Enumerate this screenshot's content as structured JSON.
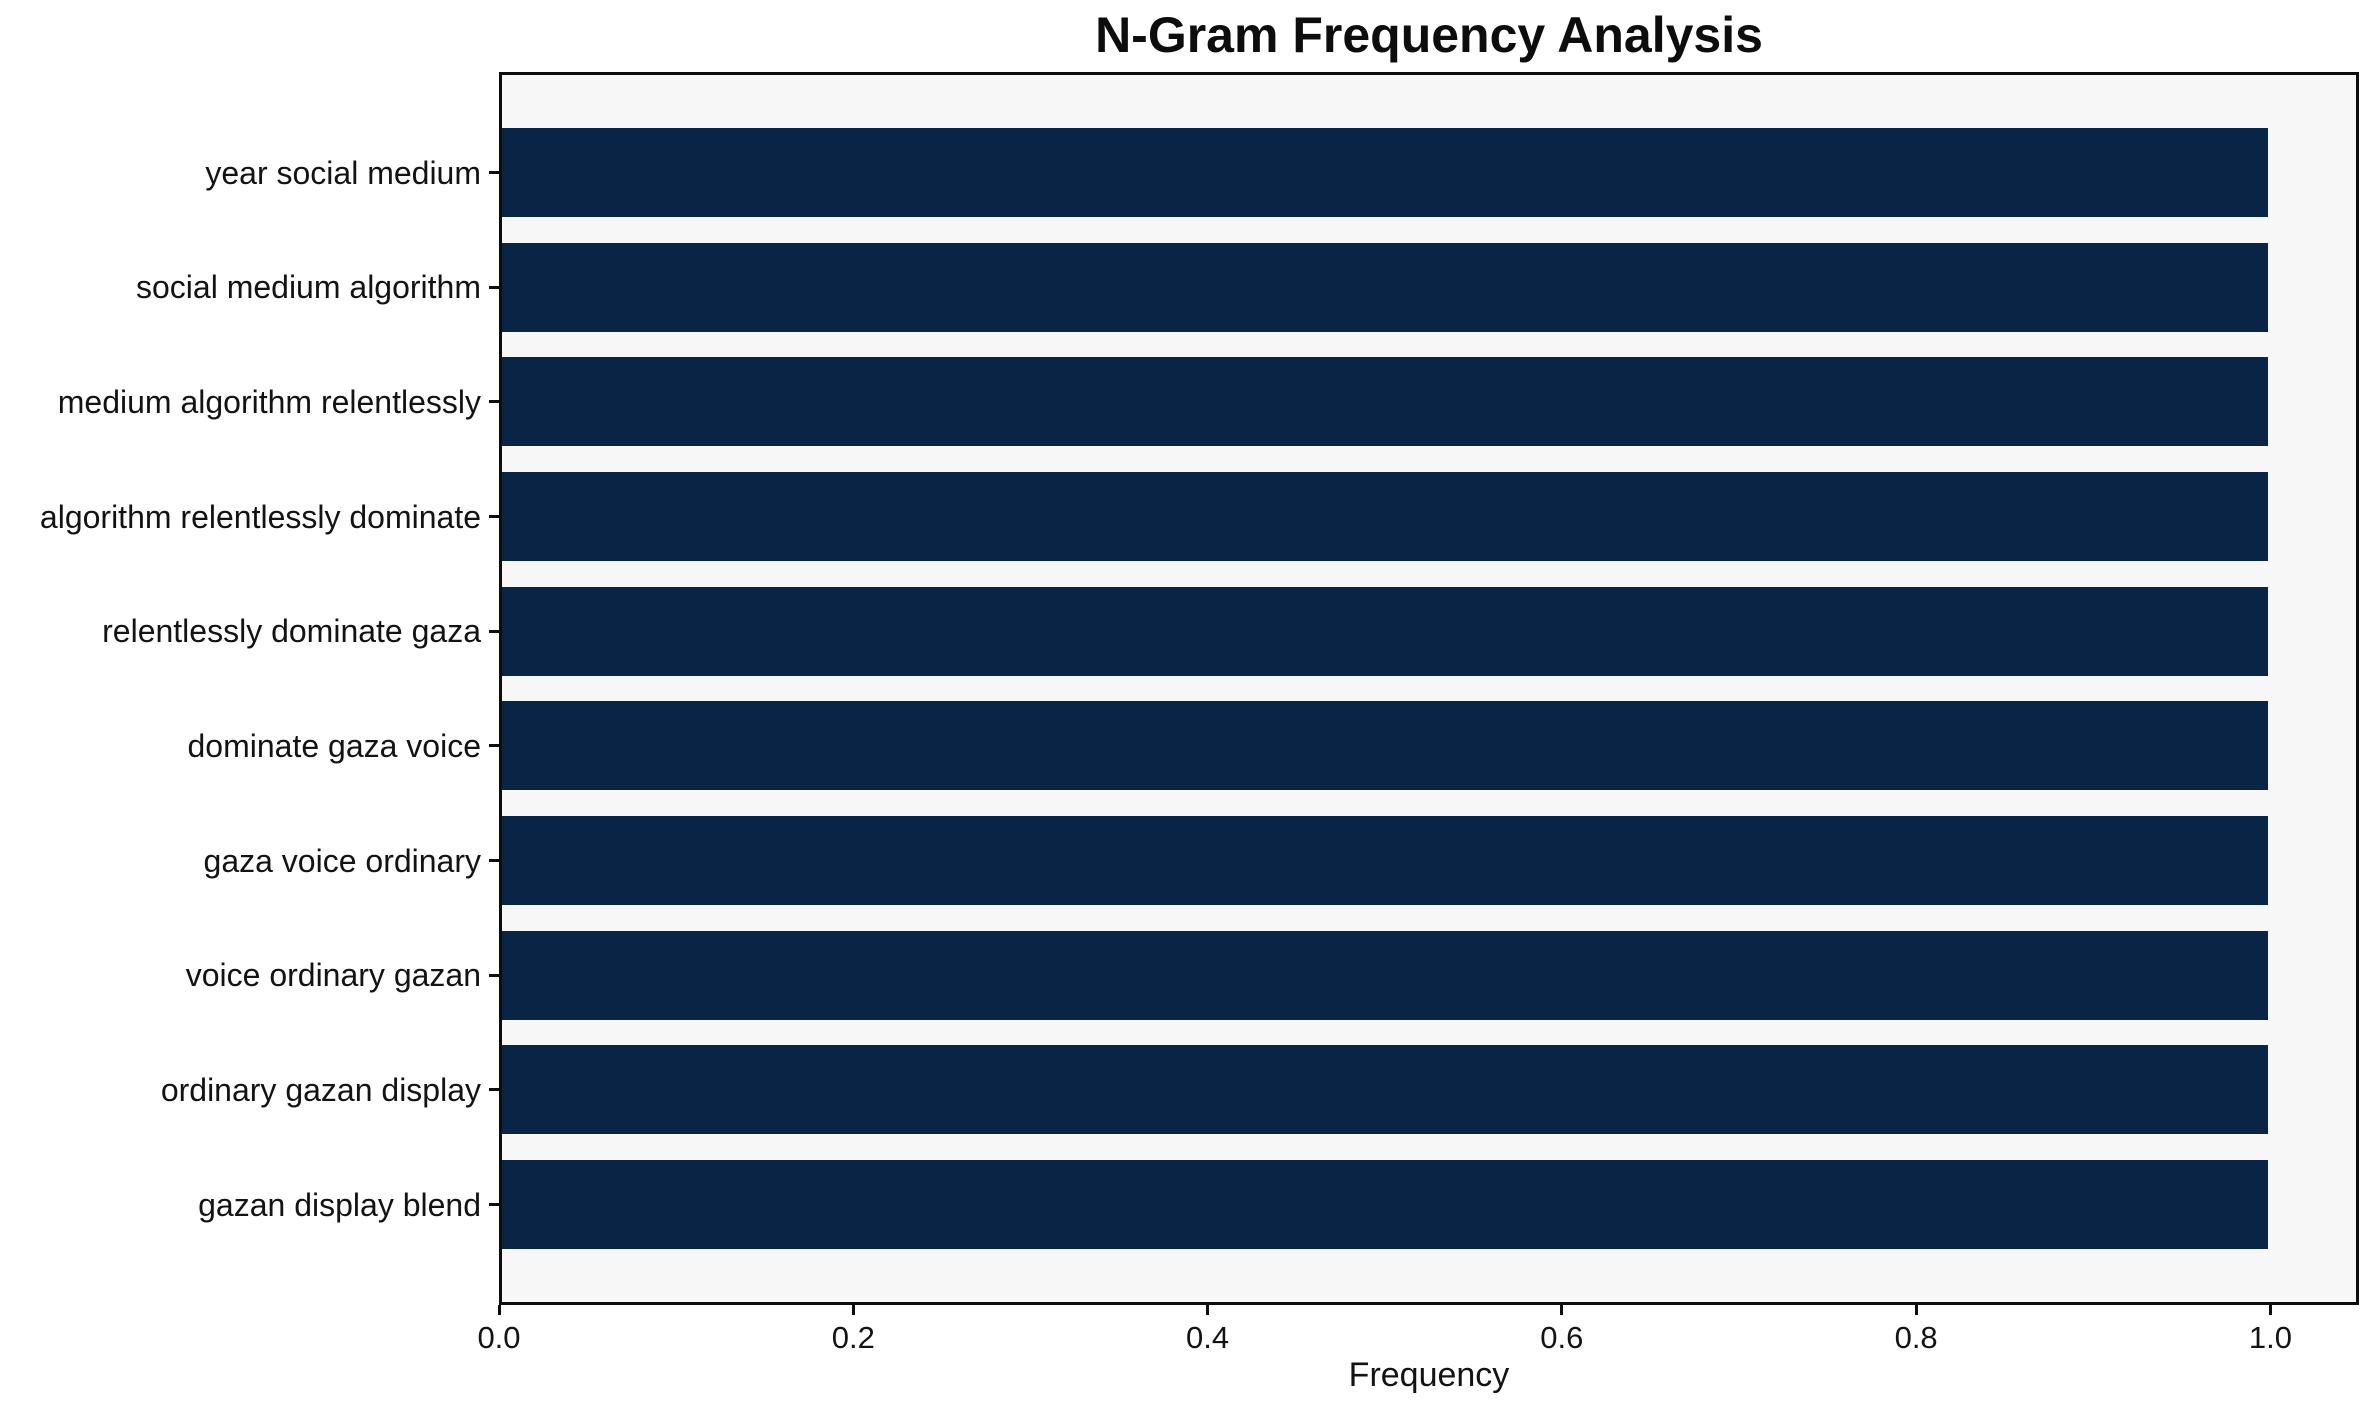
{
  "chart_data": {
    "type": "bar",
    "orientation": "horizontal",
    "title": "N-Gram Frequency Analysis",
    "xlabel": "Frequency",
    "ylabel": "",
    "categories": [
      "year social medium",
      "social medium algorithm",
      "medium algorithm relentlessly",
      "algorithm relentlessly dominate",
      "relentlessly dominate gaza",
      "dominate gaza voice",
      "gaza voice ordinary",
      "voice ordinary gazan",
      "ordinary gazan display",
      "gazan display blend"
    ],
    "values": [
      1.0,
      1.0,
      1.0,
      1.0,
      1.0,
      1.0,
      1.0,
      1.0,
      1.0,
      1.0
    ],
    "xlim": [
      0,
      1.05
    ],
    "xticks": [
      0.0,
      0.2,
      0.4,
      0.6,
      0.8,
      1.0
    ],
    "xtick_labels": [
      "0.0",
      "0.2",
      "0.4",
      "0.6",
      "0.8",
      "1.0"
    ],
    "grid": false,
    "legend": null,
    "colors": {
      "bar": "#0a2446",
      "plot_background": "#f7f7f7",
      "figure_background": "#ffffff",
      "frame": "#0d0d0d",
      "text": "#131313"
    }
  }
}
